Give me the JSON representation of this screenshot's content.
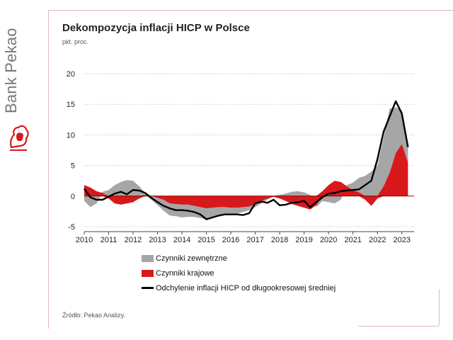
{
  "brand": {
    "name": "Bank Pekao"
  },
  "header": {
    "title": "Dekompozycja inflacji HICP w Polsce",
    "subtitle": "pkt. proc."
  },
  "footer": {
    "source": "Źródło: Pekao Analizy."
  },
  "colors": {
    "external": "#a6a6a6",
    "domestic": "#d7191c",
    "deviation": "#000000",
    "frame": "#e3b6b6",
    "brand_red": "#d7191c"
  },
  "legend": {
    "items": [
      {
        "label": "Czynniki zewnętrzne",
        "color": "#a6a6a6",
        "kind": "area"
      },
      {
        "label": "Czynniki krajowe",
        "color": "#d7191c",
        "kind": "area"
      },
      {
        "label": "Odchylenie inflacji HICP od długookresowej średniej",
        "color": "#000000",
        "kind": "line"
      }
    ]
  },
  "chart_data": {
    "type": "area",
    "x_ticks": [
      "2010",
      "2011",
      "2012",
      "2013",
      "2014",
      "2015",
      "2016",
      "2017",
      "2018",
      "2019",
      "2020",
      "2021",
      "2022",
      "2023"
    ],
    "y_ticks": [
      -5,
      0,
      5,
      10,
      15,
      20
    ],
    "ylim": [
      -5,
      20
    ],
    "xlim": [
      2010.0,
      2023.5
    ],
    "grid": "horizontal dashed",
    "x": [
      2010.0,
      2010.25,
      2010.5,
      2010.75,
      2011.0,
      2011.25,
      2011.5,
      2011.75,
      2012.0,
      2012.25,
      2012.5,
      2012.75,
      2013.0,
      2013.25,
      2013.5,
      2013.75,
      2014.0,
      2014.25,
      2014.5,
      2014.75,
      2015.0,
      2015.25,
      2015.5,
      2015.75,
      2016.0,
      2016.25,
      2016.5,
      2016.75,
      2017.0,
      2017.25,
      2017.5,
      2017.75,
      2018.0,
      2018.25,
      2018.5,
      2018.75,
      2019.0,
      2019.25,
      2019.5,
      2019.75,
      2020.0,
      2020.25,
      2020.5,
      2020.75,
      2021.0,
      2021.25,
      2021.5,
      2021.75,
      2022.0,
      2022.25,
      2022.5,
      2022.75,
      2023.0,
      2023.25
    ],
    "series": [
      {
        "name": "Czynniki zewnętrzne",
        "values": [
          -0.8,
          -1.8,
          -1.2,
          0.2,
          1.0,
          1.8,
          2.3,
          2.6,
          2.5,
          1.6,
          0.3,
          -0.6,
          -1.2,
          -1.8,
          -2.0,
          -2.0,
          -2.1,
          -2.0,
          -1.8,
          -1.8,
          -1.8,
          -1.5,
          -1.3,
          -1.2,
          -1.0,
          -1.0,
          -0.8,
          -0.6,
          -0.4,
          -0.4,
          -0.2,
          0.0,
          0.2,
          0.4,
          0.7,
          0.8,
          0.6,
          0.2,
          -0.3,
          -0.8,
          -1.0,
          -1.2,
          -0.6,
          0.2,
          1.2,
          2.4,
          3.3,
          4.0,
          5.0,
          8.0,
          10.5,
          7.5,
          5.5,
          3.0
        ]
      },
      {
        "name": "Czynniki krajowe",
        "values": [
          1.8,
          1.4,
          0.8,
          0.5,
          -0.4,
          -1.2,
          -1.4,
          -1.2,
          -1.0,
          -0.4,
          0.2,
          0.0,
          -0.3,
          -0.6,
          -1.2,
          -1.3,
          -1.4,
          -1.4,
          -1.6,
          -1.8,
          -2.0,
          -1.9,
          -1.8,
          -1.8,
          -1.9,
          -1.9,
          -1.8,
          -1.7,
          -1.4,
          -0.8,
          -0.4,
          -0.1,
          -0.4,
          -0.8,
          -1.3,
          -1.6,
          -1.9,
          -2.2,
          -1.5,
          0.8,
          1.8,
          2.5,
          2.3,
          1.6,
          1.0,
          0.6,
          -0.6,
          -1.6,
          -0.4,
          1.6,
          3.8,
          7.0,
          8.5,
          5.5
        ]
      },
      {
        "name": "Odchylenie inflacji HICP od długookresowej średniej",
        "values": [
          1.2,
          -0.2,
          -0.6,
          -0.6,
          -0.1,
          0.4,
          0.7,
          0.3,
          1.0,
          0.9,
          0.5,
          -0.3,
          -1.0,
          -1.6,
          -2.0,
          -2.3,
          -2.3,
          -2.4,
          -2.6,
          -3.0,
          -3.8,
          -3.5,
          -3.2,
          -3.0,
          -3.0,
          -3.0,
          -3.1,
          -2.8,
          -1.2,
          -0.9,
          -1.1,
          -0.6,
          -1.5,
          -1.4,
          -1.1,
          -1.0,
          -0.8,
          -1.8,
          -1.0,
          -0.2,
          0.4,
          0.5,
          0.8,
          0.9,
          1.0,
          1.1,
          1.8,
          2.5,
          6.0,
          10.5,
          13.0,
          15.5,
          13.5,
          8.0
        ]
      }
    ]
  }
}
